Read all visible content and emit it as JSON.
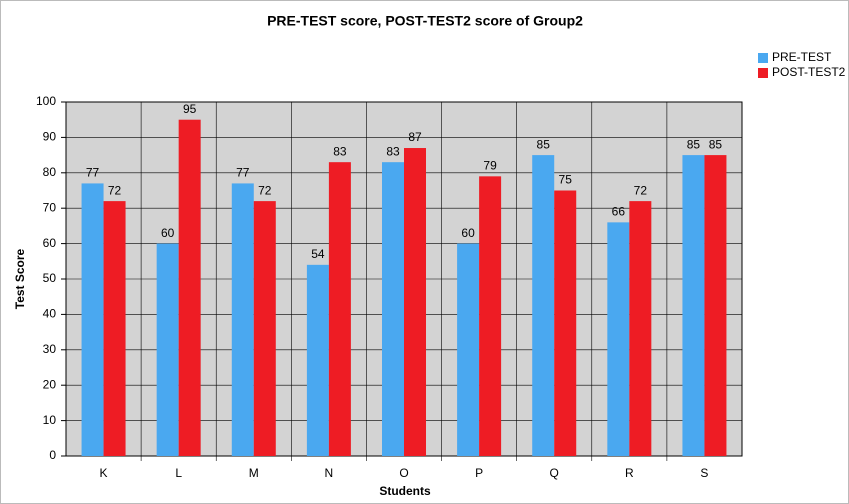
{
  "chart_data": {
    "type": "bar",
    "title": "PRE-TEST score, POST-TEST2 score of Group2",
    "x_label": "Students",
    "y_label": "Test Score",
    "categories": [
      "K",
      "L",
      "M",
      "N",
      "O",
      "P",
      "Q",
      "R",
      "S"
    ],
    "series": [
      {
        "name": "PRE-TEST",
        "color": "#4aa8f0",
        "values": [
          77,
          60,
          77,
          54,
          83,
          60,
          85,
          66,
          85
        ]
      },
      {
        "name": "POST-TEST2",
        "color": "#ee1c24",
        "values": [
          72,
          95,
          72,
          83,
          87,
          79,
          75,
          72,
          85
        ]
      }
    ],
    "ylim": [
      0,
      100
    ],
    "yticks": [
      0,
      10,
      20,
      30,
      40,
      50,
      60,
      70,
      80,
      90,
      100
    ],
    "grid": true,
    "legend": "top-right"
  }
}
